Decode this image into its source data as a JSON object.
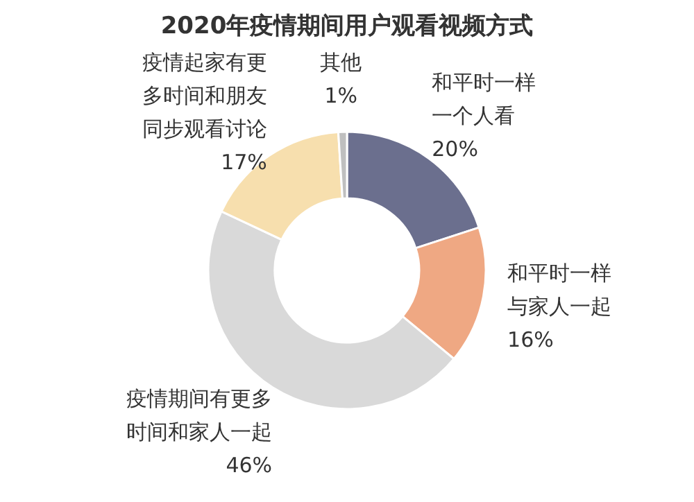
{
  "chart_data": {
    "type": "donut",
    "title": "2020年疫情期间用户观看视频方式",
    "categories": [
      "和平时一样一个人看",
      "和平时一样与家人一起",
      "疫情期间有更多时间和家人一起",
      "疫情起家有更多时间和朋友同步观看讨论",
      "其他"
    ],
    "values": [
      20,
      16,
      46,
      17,
      1
    ],
    "colors": [
      "#6b6f8e",
      "#efa883",
      "#d9d9d9",
      "#f7dfae",
      "#bfbfbf"
    ],
    "value_labels": [
      "20%",
      "16%",
      "46%",
      "17%",
      "1%"
    ]
  }
}
